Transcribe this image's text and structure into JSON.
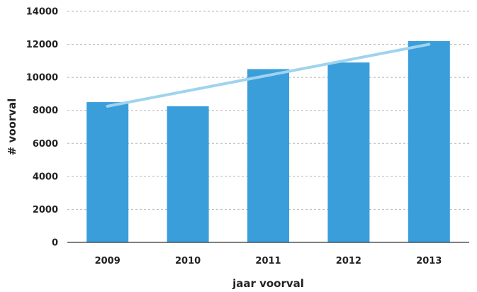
{
  "chart_data": {
    "type": "bar",
    "title": "",
    "xlabel": "jaar voorval",
    "ylabel": "# voorval",
    "categories": [
      "2009",
      "2010",
      "2011",
      "2012",
      "2013"
    ],
    "values": [
      8500,
      8250,
      10500,
      10900,
      12200
    ],
    "ylim": [
      0,
      14000
    ],
    "yticks": [
      0,
      2000,
      4000,
      6000,
      8000,
      10000,
      12000,
      14000
    ],
    "trendline": {
      "start": 8250,
      "end": 12000
    },
    "grid": true,
    "legend": "none",
    "colors": {
      "bar": "#3a9edb",
      "trend": "#9fd3ef"
    }
  }
}
